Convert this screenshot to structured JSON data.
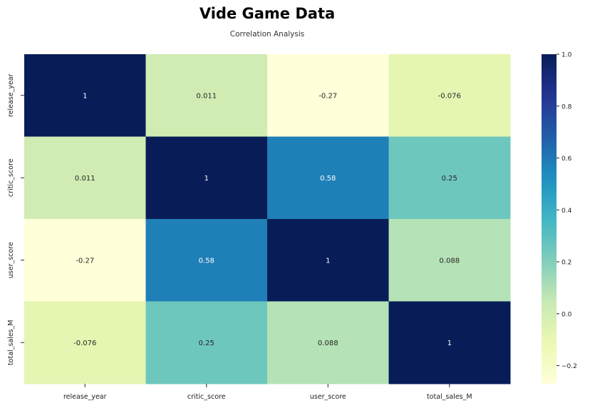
{
  "chart_data": {
    "type": "heatmap",
    "title": "Vide Game Data",
    "subtitle": "Correlation Analysis",
    "rows": [
      "release_year",
      "critic_score",
      "user_score",
      "total_sales_M"
    ],
    "columns": [
      "release_year",
      "critic_score",
      "user_score",
      "total_sales_M"
    ],
    "values": [
      [
        1,
        0.011,
        -0.27,
        -0.076
      ],
      [
        0.011,
        1,
        0.58,
        0.25
      ],
      [
        -0.27,
        0.58,
        1,
        0.088
      ],
      [
        -0.076,
        0.25,
        0.088,
        1
      ]
    ],
    "annotations": [
      [
        "1",
        "0.011",
        "-0.27",
        "-0.076"
      ],
      [
        "0.011",
        "1",
        "0.58",
        "0.25"
      ],
      [
        "-0.27",
        "0.58",
        "1",
        "0.088"
      ],
      [
        "-0.076",
        "0.25",
        "0.088",
        "1"
      ]
    ],
    "colormap": "YlGnBu",
    "vmin": -0.27,
    "vmax": 1,
    "colorbar_ticks": [
      1.0,
      0.8,
      0.6,
      0.4,
      0.2,
      0.0,
      -0.2
    ],
    "colorbar_tick_labels": [
      "1.0",
      "0.8",
      "0.6",
      "0.4",
      "0.2",
      "0.0",
      "−0.2"
    ],
    "colorbar_position": "right"
  }
}
